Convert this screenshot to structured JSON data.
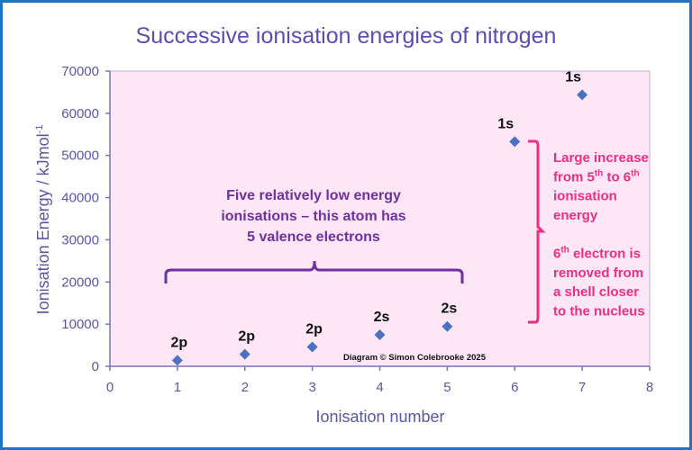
{
  "chart_data": {
    "type": "scatter",
    "title": "Successive ionisation energies of nitrogen",
    "xlabel": "Ionisation number",
    "ylabel": "Ionisation Energy / kJmol",
    "ylabel_sup": "-1",
    "xlim": [
      0,
      8
    ],
    "ylim": [
      0,
      70000
    ],
    "xticks": [
      "0",
      "1",
      "2",
      "3",
      "4",
      "5",
      "6",
      "7",
      "8"
    ],
    "yticks": [
      "0",
      "10000",
      "20000",
      "30000",
      "40000",
      "50000",
      "60000",
      "70000"
    ],
    "grid": false,
    "marker": "diamond",
    "x": [
      1,
      2,
      3,
      4,
      5,
      6,
      7
    ],
    "y": [
      1402,
      2856,
      4578,
      7475,
      9445,
      53267,
      64360
    ],
    "point_labels": [
      "2p",
      "2p",
      "2p",
      "2s",
      "2s",
      "1s",
      "1s"
    ],
    "annotations": {
      "valence_text": [
        "Five relatively low energy",
        "ionisations – this atom has",
        "5 valence electrons"
      ],
      "jump_text": [
        [
          {
            "t": "Large increase"
          }
        ],
        [
          {
            "t": "from 5"
          },
          {
            "t": "th",
            "sup": true
          },
          {
            "t": " to 6"
          },
          {
            "t": "th",
            "sup": true
          }
        ],
        [
          {
            "t": "ionisation"
          }
        ],
        [
          {
            "t": "energy"
          }
        ],
        [
          {
            "t": ""
          }
        ],
        [
          {
            "t": "6"
          },
          {
            "t": "th",
            "sup": true
          },
          {
            "t": " electron is"
          }
        ],
        [
          {
            "t": "removed from"
          }
        ],
        [
          {
            "t": "a shell closer"
          }
        ],
        [
          {
            "t": "to the nucleus"
          }
        ]
      ],
      "credit": "Diagram © Simon Colebrooke 2025"
    },
    "colors": {
      "frame": "#1f74c4",
      "plot_bg": "#fde6f6",
      "axis": "#7b72b8",
      "tick_text": "#5b56a3",
      "title": "#5b4fae",
      "marker": "#4a72c0",
      "valence_annotation": "#7030a0",
      "jump_annotation": "#ec2f83"
    }
  }
}
